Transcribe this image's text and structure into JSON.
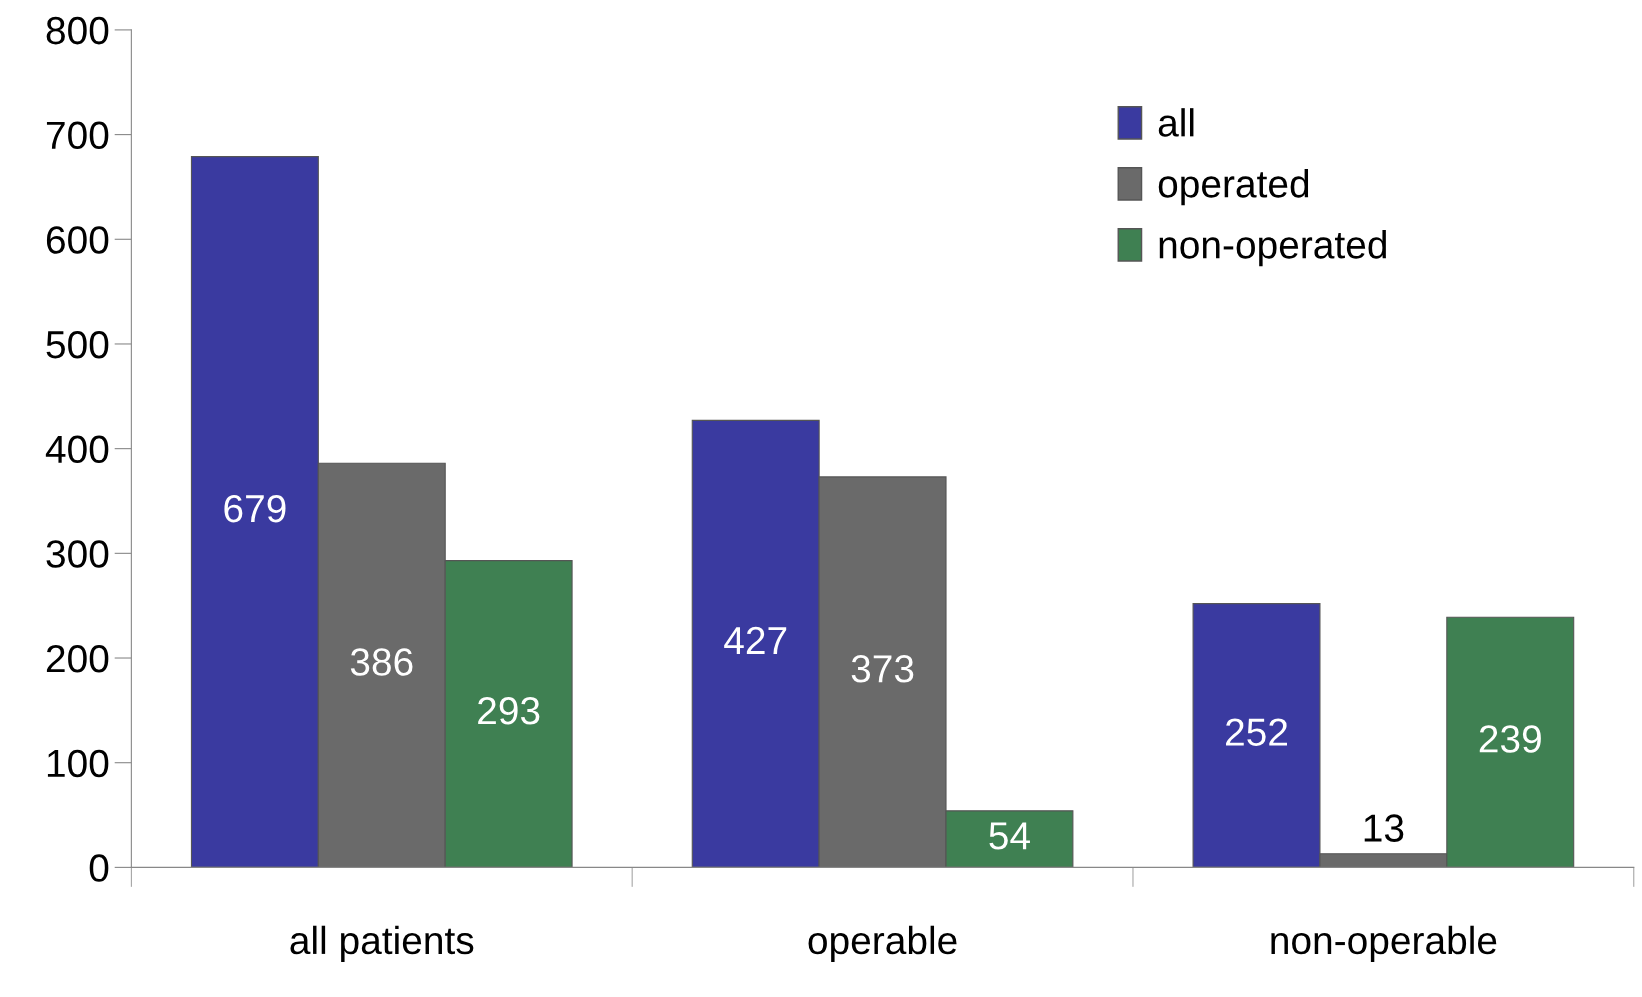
{
  "chart_data": {
    "type": "bar",
    "categories": [
      "all patients",
      "operable",
      "non-operable"
    ],
    "series": [
      {
        "name": "all",
        "color": "#3a3aa0",
        "values": [
          679,
          427,
          252
        ]
      },
      {
        "name": "operated",
        "color": "#6a6a6a",
        "values": [
          386,
          373,
          13
        ]
      },
      {
        "name": "non-operated",
        "color": "#3f8052",
        "values": [
          293,
          54,
          239
        ]
      }
    ],
    "ylim": [
      0,
      800
    ],
    "yticks": [
      0,
      100,
      200,
      300,
      400,
      500,
      600,
      700,
      800
    ],
    "grid": false,
    "legend": "top right",
    "data_labels": true
  }
}
